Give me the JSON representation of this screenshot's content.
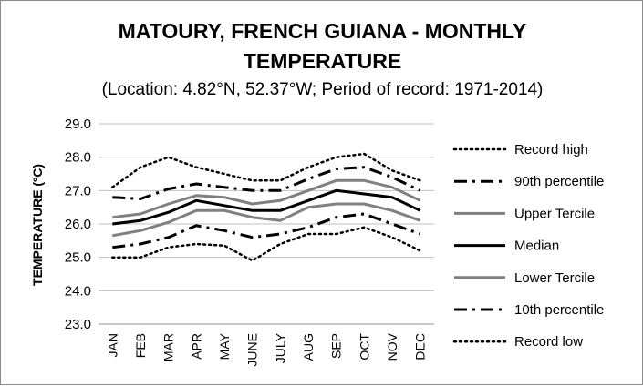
{
  "chart_data": {
    "type": "line",
    "title_line1": "MATOURY, FRENCH GUIANA - MONTHLY",
    "title_line2": "TEMPERATURE",
    "subtitle": "(Location: 4.82°N, 52.37°W; Period of record: 1971-2014)",
    "ylabel": "TEMPERATURE (ºC)",
    "xlabel": "",
    "categories": [
      "JAN",
      "FEB",
      "MAR",
      "APR",
      "MAY",
      "JUNE",
      "JULY",
      "AUG",
      "SEP",
      "OCT",
      "NOV",
      "DEC"
    ],
    "ylim": [
      23.0,
      29.0
    ],
    "yticks": [
      "23.0",
      "24.0",
      "25.0",
      "26.0",
      "27.0",
      "28.0",
      "29.0"
    ],
    "grid": true,
    "legend_position": "right",
    "series": [
      {
        "name": "Record high",
        "color": "#000000",
        "style": "dotted",
        "values": [
          27.1,
          27.7,
          28.0,
          27.7,
          27.5,
          27.3,
          27.3,
          27.7,
          28.0,
          28.1,
          27.6,
          27.3
        ]
      },
      {
        "name": "90th percentile",
        "color": "#000000",
        "style": "dashdot",
        "values": [
          26.8,
          26.75,
          27.05,
          27.2,
          27.1,
          27.0,
          27.0,
          27.35,
          27.65,
          27.7,
          27.4,
          27.0
        ]
      },
      {
        "name": "Upper Tercile",
        "color": "#808080",
        "style": "solid",
        "values": [
          26.2,
          26.3,
          26.6,
          26.85,
          26.8,
          26.6,
          26.7,
          27.0,
          27.3,
          27.3,
          27.1,
          26.7
        ]
      },
      {
        "name": "Median",
        "color": "#000000",
        "style": "solid",
        "values": [
          26.0,
          26.1,
          26.35,
          26.7,
          26.55,
          26.4,
          26.4,
          26.7,
          27.0,
          26.9,
          26.8,
          26.4
        ]
      },
      {
        "name": "Lower Tercile",
        "color": "#808080",
        "style": "solid",
        "values": [
          25.65,
          25.8,
          26.05,
          26.4,
          26.4,
          26.2,
          26.1,
          26.5,
          26.6,
          26.6,
          26.4,
          26.1
        ]
      },
      {
        "name": "10th percentile",
        "color": "#000000",
        "style": "dashdot",
        "values": [
          25.3,
          25.4,
          25.6,
          25.95,
          25.8,
          25.6,
          25.7,
          25.9,
          26.2,
          26.3,
          26.0,
          25.7
        ]
      },
      {
        "name": "Record low",
        "color": "#000000",
        "style": "dotted",
        "values": [
          25.0,
          25.0,
          25.3,
          25.4,
          25.35,
          24.9,
          25.4,
          25.7,
          25.7,
          25.9,
          25.6,
          25.2
        ]
      }
    ]
  }
}
